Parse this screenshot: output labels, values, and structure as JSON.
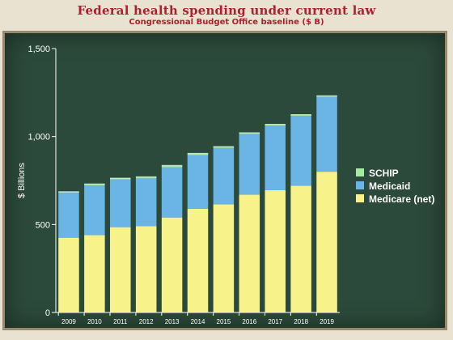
{
  "title": "Federal health spending under current law",
  "subtitle": "Congressional Budget Office baseline ($ B)",
  "chart_data": {
    "type": "bar",
    "stacked": true,
    "title": "Federal health spending under current law",
    "subtitle": "Congressional Budget Office baseline ($ B)",
    "xlabel": "",
    "ylabel": "$ Billions",
    "ylim": [
      0,
      1500
    ],
    "yticks": [
      0,
      500,
      1000,
      1500
    ],
    "ytick_labels": [
      "0",
      "500",
      "1,000",
      "1,500"
    ],
    "categories": [
      "2009",
      "2010",
      "2011",
      "2012",
      "2013",
      "2014",
      "2015",
      "2016",
      "2017",
      "2018",
      "2019"
    ],
    "series": [
      {
        "name": "Medicare (net)",
        "color": "#f7f28a",
        "values": [
          425,
          440,
          485,
          490,
          540,
          590,
          615,
          670,
          695,
          720,
          800
        ]
      },
      {
        "name": "Medicaid",
        "color": "#6ab4e6",
        "values": [
          255,
          283,
          271,
          272,
          286,
          305,
          320,
          345,
          368,
          398,
          425
        ]
      },
      {
        "name": "SCHIP",
        "color": "#a6eaa4",
        "values": [
          7,
          8,
          8,
          9,
          10,
          10,
          8,
          7,
          7,
          7,
          7
        ]
      }
    ],
    "legend_position": "right",
    "grid": false
  }
}
